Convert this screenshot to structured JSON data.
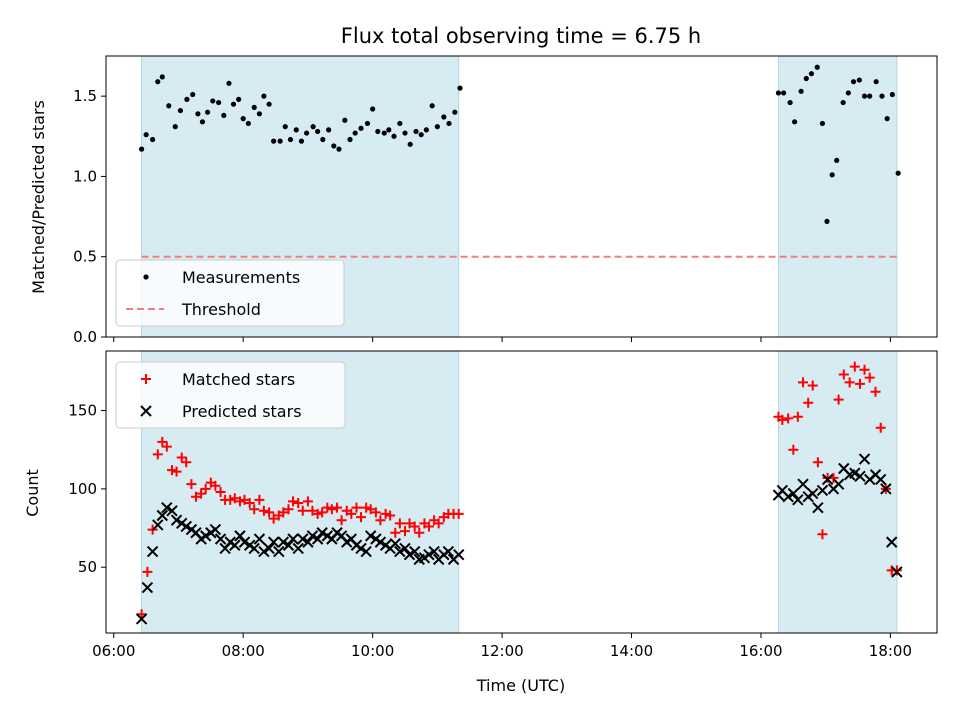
{
  "chart_data": [
    {
      "type": "scatter",
      "title": "Flux total observing time = 6.75 h",
      "xlabel": "",
      "ylabel": "Matched/Predicted stars",
      "xlim_hours": [
        5.88,
        18.72
      ],
      "ylim": [
        0,
        1.75
      ],
      "yticks": [
        0.0,
        0.5,
        1.0,
        1.5
      ],
      "yticklabels": [
        "0.0",
        "0.5",
        "1.0",
        "1.5"
      ],
      "legend_position": "lower-left",
      "shaded_intervals_hours": [
        [
          6.43,
          11.33
        ],
        [
          16.27,
          18.1
        ]
      ],
      "series": [
        {
          "name": "Measurements",
          "marker": "dot",
          "color": "#000000",
          "x_hours": [
            6.43,
            6.5,
            6.6,
            6.68,
            6.75,
            6.85,
            6.95,
            7.03,
            7.13,
            7.22,
            7.3,
            7.37,
            7.45,
            7.53,
            7.62,
            7.7,
            7.78,
            7.85,
            7.93,
            8.0,
            8.08,
            8.17,
            8.25,
            8.32,
            8.4,
            8.47,
            8.57,
            8.65,
            8.73,
            8.82,
            8.9,
            8.98,
            9.08,
            9.15,
            9.23,
            9.32,
            9.4,
            9.48,
            9.57,
            9.65,
            9.73,
            9.82,
            9.92,
            10.0,
            10.08,
            10.18,
            10.25,
            10.33,
            10.42,
            10.5,
            10.58,
            10.67,
            10.75,
            10.83,
            10.92,
            11.0,
            11.1,
            11.18,
            11.27,
            11.35,
            16.27,
            16.35,
            16.45,
            16.52,
            16.62,
            16.7,
            16.78,
            16.87,
            16.95,
            17.02,
            17.1,
            17.17,
            17.27,
            17.35,
            17.43,
            17.52,
            17.6,
            17.68,
            17.78,
            17.87,
            17.95,
            18.03,
            18.12
          ],
          "y": [
            1.17,
            1.26,
            1.23,
            1.59,
            1.62,
            1.44,
            1.31,
            1.41,
            1.48,
            1.51,
            1.39,
            1.34,
            1.4,
            1.47,
            1.46,
            1.38,
            1.58,
            1.45,
            1.48,
            1.36,
            1.33,
            1.43,
            1.39,
            1.5,
            1.45,
            1.22,
            1.22,
            1.31,
            1.23,
            1.29,
            1.22,
            1.27,
            1.31,
            1.28,
            1.23,
            1.29,
            1.19,
            1.17,
            1.35,
            1.23,
            1.27,
            1.3,
            1.33,
            1.42,
            1.28,
            1.27,
            1.29,
            1.25,
            1.33,
            1.27,
            1.2,
            1.28,
            1.26,
            1.29,
            1.44,
            1.31,
            1.37,
            1.33,
            1.4,
            1.55,
            1.52,
            1.52,
            1.46,
            1.34,
            1.53,
            1.61,
            1.64,
            1.68,
            1.33,
            0.72,
            1.01,
            1.1,
            1.46,
            1.52,
            1.59,
            1.6,
            1.5,
            1.5,
            1.59,
            1.5,
            1.36,
            1.51,
            1.02
          ]
        },
        {
          "name": "Threshold",
          "type": "line",
          "style": "dashed",
          "color": "#f08080",
          "x_hours": [
            6.43,
            18.12
          ],
          "y": [
            0.5,
            0.5
          ]
        }
      ]
    },
    {
      "type": "scatter",
      "title": "",
      "xlabel": "Time (UTC)",
      "ylabel": "Count",
      "xlim_hours": [
        5.88,
        18.72
      ],
      "ylim": [
        8,
        188
      ],
      "xticks_hours": [
        6,
        8,
        10,
        12,
        14,
        16,
        18
      ],
      "xticklabels": [
        "06:00",
        "08:00",
        "10:00",
        "12:00",
        "14:00",
        "16:00",
        "18:00"
      ],
      "yticks": [
        50,
        100,
        150
      ],
      "yticklabels": [
        "50",
        "100",
        "150"
      ],
      "legend_position": "top-left",
      "shaded_intervals_hours": [
        [
          6.43,
          11.33
        ],
        [
          16.27,
          18.1
        ]
      ],
      "series": [
        {
          "name": "Matched stars",
          "marker": "plus",
          "color": "#ff0000",
          "x_hours": [
            6.43,
            6.52,
            6.6,
            6.68,
            6.75,
            6.82,
            6.9,
            6.97,
            7.05,
            7.12,
            7.2,
            7.27,
            7.35,
            7.42,
            7.5,
            7.57,
            7.65,
            7.72,
            7.8,
            7.87,
            7.95,
            8.02,
            8.1,
            8.17,
            8.25,
            8.32,
            8.4,
            8.47,
            8.55,
            8.62,
            8.7,
            8.77,
            8.85,
            8.92,
            9.0,
            9.07,
            9.15,
            9.22,
            9.3,
            9.37,
            9.45,
            9.52,
            9.6,
            9.67,
            9.75,
            9.82,
            9.9,
            9.97,
            10.05,
            10.12,
            10.2,
            10.27,
            10.35,
            10.42,
            10.5,
            10.57,
            10.65,
            10.72,
            10.8,
            10.87,
            10.95,
            11.02,
            11.1,
            11.17,
            11.25,
            11.33,
            16.27,
            16.33,
            16.42,
            16.5,
            16.57,
            16.65,
            16.73,
            16.8,
            16.88,
            16.95,
            17.03,
            17.12,
            17.2,
            17.28,
            17.37,
            17.45,
            17.53,
            17.6,
            17.68,
            17.77,
            17.85,
            17.93,
            18.02,
            18.1
          ],
          "y": [
            20,
            47,
            74,
            122,
            130,
            127,
            112,
            111,
            120,
            117,
            103,
            95,
            97,
            100,
            104,
            102,
            98,
            93,
            93,
            94,
            92,
            93,
            91,
            87,
            93,
            86,
            85,
            81,
            83,
            85,
            87,
            92,
            91,
            86,
            92,
            86,
            84,
            85,
            88,
            87,
            88,
            80,
            86,
            84,
            88,
            82,
            88,
            87,
            85,
            80,
            84,
            83,
            72,
            78,
            73,
            78,
            76,
            72,
            78,
            76,
            80,
            78,
            82,
            84,
            84,
            84,
            146,
            144,
            145,
            125,
            146,
            168,
            155,
            166,
            117,
            71,
            107,
            107,
            157,
            173,
            168,
            178,
            167,
            176,
            171,
            162,
            139,
            100,
            48,
            48
          ]
        },
        {
          "name": "Predicted stars",
          "marker": "x",
          "color": "#000000",
          "x_hours": [
            6.43,
            6.52,
            6.6,
            6.68,
            6.75,
            6.82,
            6.9,
            6.97,
            7.05,
            7.12,
            7.2,
            7.27,
            7.35,
            7.42,
            7.5,
            7.57,
            7.65,
            7.72,
            7.8,
            7.87,
            7.95,
            8.02,
            8.1,
            8.17,
            8.25,
            8.32,
            8.4,
            8.47,
            8.55,
            8.62,
            8.7,
            8.77,
            8.85,
            8.92,
            9.0,
            9.07,
            9.15,
            9.22,
            9.3,
            9.37,
            9.45,
            9.52,
            9.6,
            9.67,
            9.75,
            9.82,
            9.9,
            9.97,
            10.05,
            10.12,
            10.2,
            10.27,
            10.35,
            10.42,
            10.5,
            10.57,
            10.65,
            10.72,
            10.8,
            10.87,
            10.95,
            11.02,
            11.1,
            11.17,
            11.25,
            11.33,
            16.27,
            16.33,
            16.42,
            16.5,
            16.57,
            16.65,
            16.73,
            16.8,
            16.88,
            16.95,
            17.03,
            17.12,
            17.2,
            17.28,
            17.37,
            17.45,
            17.53,
            17.6,
            17.68,
            17.77,
            17.85,
            17.93,
            18.02,
            18.1
          ],
          "y": [
            17,
            37,
            60,
            77,
            83,
            88,
            86,
            80,
            78,
            76,
            74,
            72,
            68,
            70,
            72,
            74,
            68,
            62,
            66,
            64,
            70,
            66,
            64,
            62,
            68,
            60,
            62,
            66,
            60,
            66,
            64,
            68,
            62,
            68,
            66,
            70,
            68,
            72,
            70,
            68,
            72,
            70,
            66,
            68,
            64,
            62,
            60,
            70,
            68,
            66,
            64,
            62,
            65,
            60,
            62,
            58,
            60,
            55,
            56,
            58,
            60,
            55,
            58,
            60,
            55,
            58,
            96,
            99,
            95,
            97,
            93,
            103,
            95,
            97,
            88,
            99,
            106,
            100,
            103,
            113,
            109,
            110,
            108,
            119,
            106,
            109,
            106,
            100,
            66,
            47
          ]
        }
      ]
    }
  ]
}
